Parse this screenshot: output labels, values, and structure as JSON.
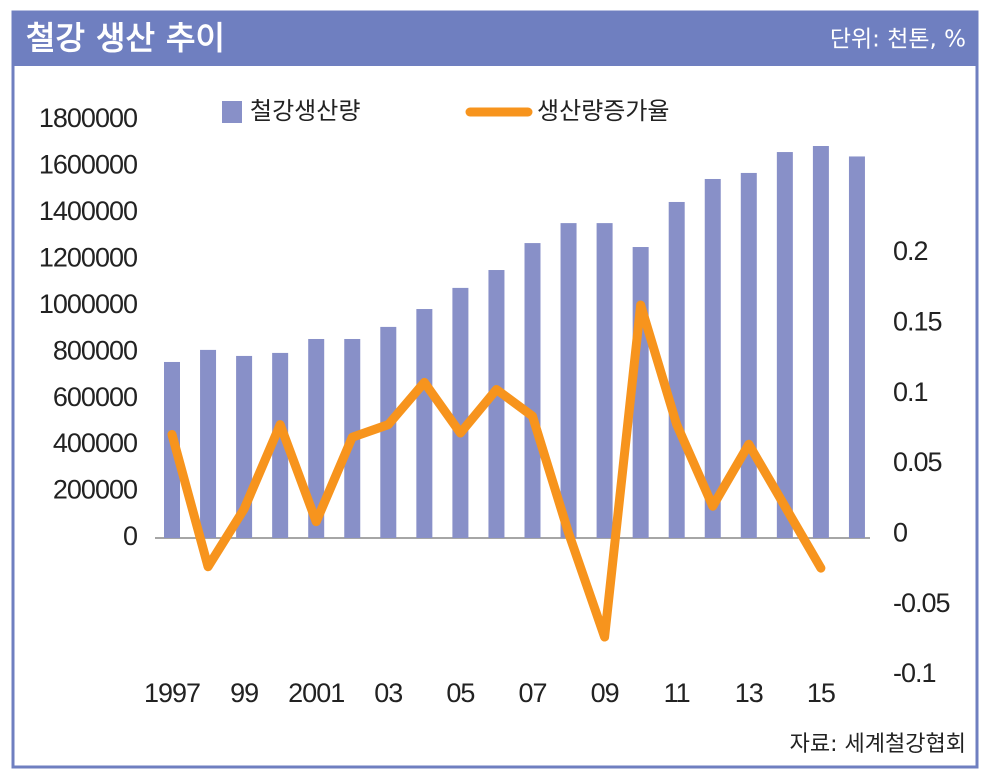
{
  "title": "철강 생산 추이",
  "unit": "단위: 천톤, %",
  "source": "자료: 세계철강협회",
  "chart_data": {
    "type": "bar",
    "categories": [
      "1997",
      null,
      "99",
      null,
      "2001",
      null,
      "03",
      null,
      "05",
      null,
      "07",
      null,
      "09",
      null,
      "11",
      null,
      "13",
      null,
      "15",
      null
    ],
    "series": [
      {
        "name": "철강생산량",
        "type": "bar",
        "color": "#8890c8",
        "axis": "y",
        "values": [
          758000,
          810000,
          784000,
          797000,
          857000,
          857000,
          909000,
          986000,
          1077000,
          1154000,
          1270000,
          1356000,
          1356000,
          1253000,
          1447000,
          1546000,
          1572000,
          1662000,
          1688000,
          1643000
        ]
      },
      {
        "name": "생산량증가율",
        "type": "line",
        "color": "#f7941d",
        "axis": "y2",
        "values": [
          0.071,
          -0.023,
          0.018,
          0.078,
          0.009,
          0.069,
          0.078,
          0.108,
          0.072,
          0.103,
          0.084,
          0.001,
          -0.073,
          0.163,
          0.078,
          0.02,
          0.064,
          0.02,
          -0.024,
          null
        ]
      }
    ],
    "ylim": [
      0,
      1800000
    ],
    "yticks": [
      0,
      200000,
      400000,
      600000,
      800000,
      1000000,
      1200000,
      1400000,
      1600000,
      1800000
    ],
    "y2lim": [
      -0.1,
      0.2
    ],
    "y2ticks": [
      -0.1,
      -0.05,
      0,
      0.05,
      0.1,
      0.15,
      0.2
    ],
    "grid": false
  }
}
